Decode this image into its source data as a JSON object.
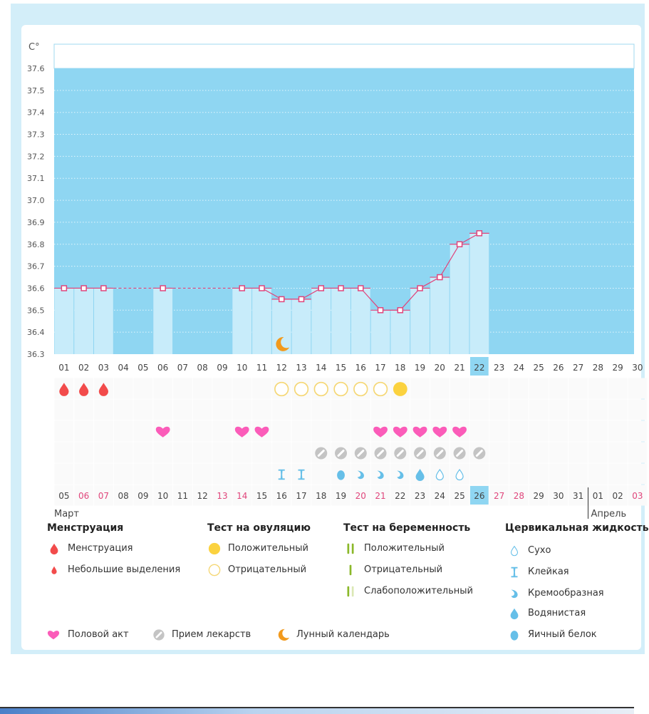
{
  "chart_data": {
    "type": "bar+line",
    "unit_label": "C°",
    "ylim": [
      36.3,
      37.6
    ],
    "y_ticks": [
      "37.6",
      "37.5",
      "37.4",
      "37.3",
      "37.2",
      "37.1",
      "37.0",
      "36.9",
      "36.8",
      "36.7",
      "36.6",
      "36.5",
      "36.4",
      "36.3"
    ],
    "grid": true,
    "cycle_days": [
      "01",
      "02",
      "03",
      "04",
      "05",
      "06",
      "07",
      "08",
      "09",
      "10",
      "11",
      "12",
      "13",
      "14",
      "15",
      "16",
      "17",
      "18",
      "19",
      "20",
      "21",
      "22",
      "23",
      "24",
      "25",
      "26",
      "27",
      "28",
      "29",
      "30"
    ],
    "temperatures": [
      36.6,
      36.6,
      36.6,
      null,
      null,
      36.6,
      null,
      null,
      null,
      36.6,
      36.6,
      36.55,
      36.55,
      36.6,
      36.6,
      36.6,
      36.5,
      36.5,
      36.6,
      36.65,
      36.8,
      36.85,
      null,
      null,
      null,
      null,
      null,
      null,
      null,
      null
    ],
    "dates": [
      "05",
      "06",
      "07",
      "08",
      "09",
      "10",
      "11",
      "12",
      "13",
      "14",
      "15",
      "16",
      "17",
      "18",
      "19",
      "20",
      "21",
      "22",
      "23",
      "24",
      "25",
      "26",
      "27",
      "28",
      "29",
      "30",
      "31",
      "01",
      "02",
      "03"
    ],
    "weekend_dates_idx": [
      1,
      2,
      8,
      9,
      15,
      16,
      22,
      23,
      29
    ],
    "today_idx": 21,
    "months": [
      {
        "label": "Март",
        "start_idx": 0
      },
      {
        "label": "Апрель",
        "start_idx": 27
      }
    ],
    "markers": {
      "menstruation": [
        1,
        2,
        3
      ],
      "ovulation_negative": [
        12,
        13,
        14,
        15,
        16,
        17
      ],
      "ovulation_positive": [
        18
      ],
      "intercourse": [
        6,
        10,
        11,
        17,
        18,
        19,
        20,
        21
      ],
      "medication": [
        14,
        15,
        16,
        17,
        18,
        19,
        20,
        21,
        22
      ],
      "cervical_sticky": [
        12,
        13
      ],
      "cervical_eggwhite": [
        15
      ],
      "cervical_creamy": [
        16,
        17,
        18
      ],
      "cervical_watery": [
        19
      ],
      "cervical_dry": [
        20,
        21
      ],
      "lunar": [
        12
      ]
    },
    "colors": {
      "plot_bg": "#8fd6f2",
      "bar": "#c8ecfa",
      "line": "#e0457b",
      "menstruation": "#f24b4b",
      "heart": "#fb5cb9",
      "pill": "#c4c4c4",
      "ovulation": "#fbd23f",
      "cervical": "#66bfe8",
      "moon": "#f29a1d",
      "today": "#8fd6f2",
      "weekend": "#e0457b"
    }
  },
  "legend": {
    "menstruation": {
      "title": "Менструация",
      "items": [
        "Менструация",
        "Небольшие выделения"
      ]
    },
    "ovulation": {
      "title": "Тест на овуляцию",
      "items": [
        "Положительный",
        "Отрицательный"
      ]
    },
    "pregnancy": {
      "title": "Тест на беременность",
      "items": [
        "Положительный",
        "Отрицательный",
        "Слабоположительный"
      ]
    },
    "cervical": {
      "title": "Цервикальная жидкость",
      "items": [
        "Сухо",
        "Клейкая",
        "Кремообразная",
        "Водянистая",
        "Яичный белок"
      ]
    },
    "other": [
      "Половой акт",
      "Прием лекарств",
      "Лунный календарь"
    ]
  }
}
